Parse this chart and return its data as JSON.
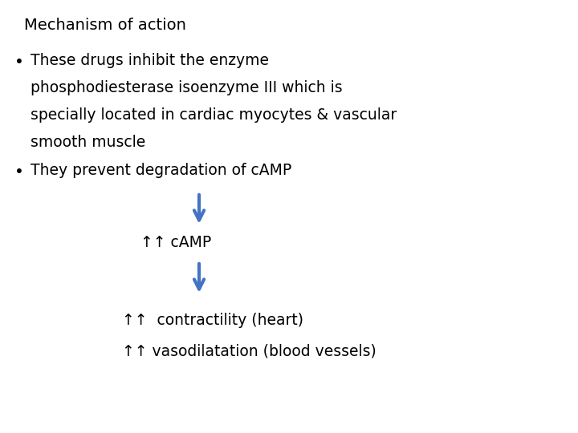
{
  "title": "Mechanism of action",
  "bullet1_line1": "These drugs inhibit the enzyme",
  "bullet1_line2": "phosphodiesterase isoenzyme III which is",
  "bullet1_line3": "specially located in cardiac myocytes & vascular",
  "bullet1_line4": "smooth muscle",
  "bullet2": "They prevent degradation of cAMP",
  "camp_label": "↑↑ cAMP",
  "result1": "↑↑  contractility (heart)",
  "result2": "↑↑ vasodilatation (blood vessels)",
  "arrow_color": "#4472C4",
  "text_color": "#000000",
  "bg_color": "#ffffff",
  "title_fontsize": 14,
  "body_fontsize": 13.5
}
